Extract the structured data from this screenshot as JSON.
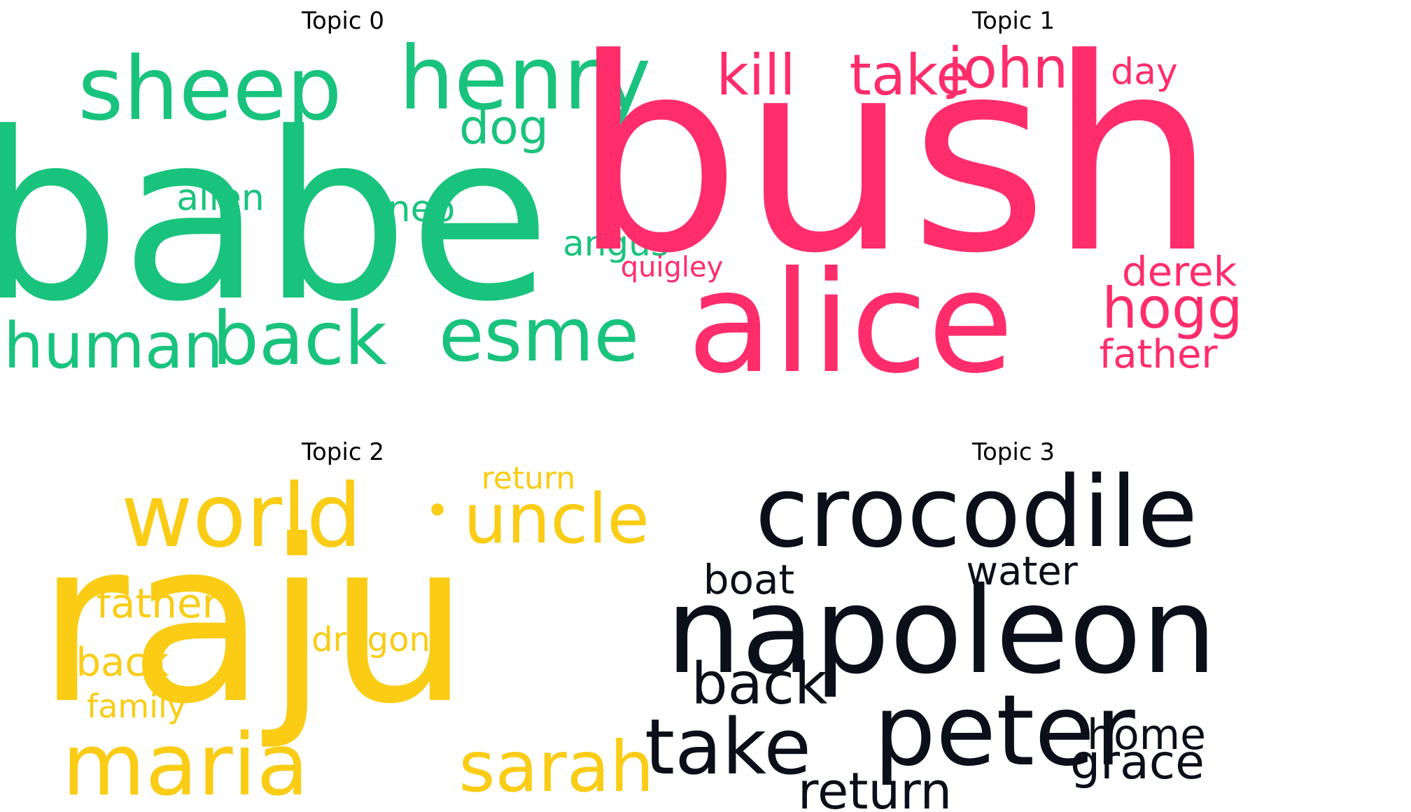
{
  "chart_data": [
    {
      "type": "wordcloud",
      "title": "Topic 0",
      "color": "#19c37d",
      "words": [
        {
          "text": "babe"
        },
        {
          "text": "sheep"
        },
        {
          "text": "henry"
        },
        {
          "text": "dog"
        },
        {
          "text": "alien"
        },
        {
          "text": "neo"
        },
        {
          "text": "angus"
        },
        {
          "text": "human"
        },
        {
          "text": "back"
        },
        {
          "text": "esme"
        }
      ]
    },
    {
      "type": "wordcloud",
      "title": "Topic 1",
      "color": "#ff2d6b",
      "words": [
        {
          "text": "bush"
        },
        {
          "text": "alice"
        },
        {
          "text": "kill"
        },
        {
          "text": "take"
        },
        {
          "text": "john"
        },
        {
          "text": "day"
        },
        {
          "text": "quigley"
        },
        {
          "text": "derek"
        },
        {
          "text": "hogg"
        },
        {
          "text": "father"
        }
      ]
    },
    {
      "type": "wordcloud",
      "title": "Topic 2",
      "color": "#facc15",
      "words": [
        {
          "text": "raju"
        },
        {
          "text": "world"
        },
        {
          "text": "•"
        },
        {
          "text": "uncle"
        },
        {
          "text": "return"
        },
        {
          "text": "father"
        },
        {
          "text": "dragon"
        },
        {
          "text": "back"
        },
        {
          "text": "family"
        },
        {
          "text": "maria"
        },
        {
          "text": "sarah"
        }
      ]
    },
    {
      "type": "wordcloud",
      "title": "Topic 3",
      "color": "#0b0f19",
      "words": [
        {
          "text": "crocodile"
        },
        {
          "text": "napoleon"
        },
        {
          "text": "boat"
        },
        {
          "text": "water"
        },
        {
          "text": "back"
        },
        {
          "text": "peter"
        },
        {
          "text": "take"
        },
        {
          "text": "return"
        },
        {
          "text": "home"
        },
        {
          "text": "grace"
        }
      ]
    }
  ]
}
